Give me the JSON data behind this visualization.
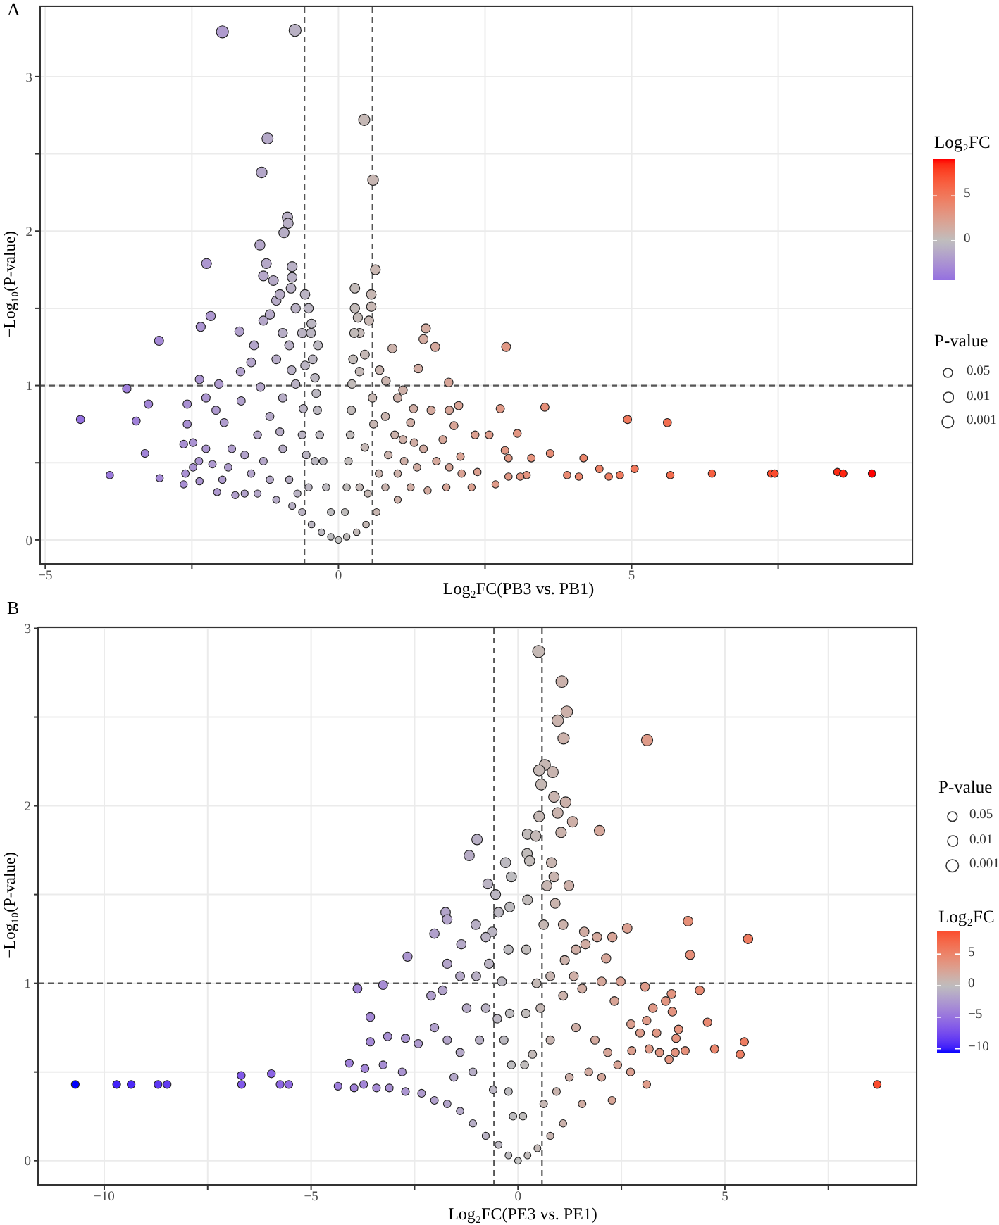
{
  "chart_data": [
    {
      "type": "bubble",
      "title": "A",
      "xlabel": "Log₂FC(PB3 vs. PB1)",
      "ylabel": "−Log₁₀(P-value)",
      "clabel": "Log₂FC",
      "legend_title": "P-value",
      "size_legend": [
        {
          "value": 0.57,
          "label": "0.05"
        },
        {
          "value": 0.72,
          "label": "0.01"
        },
        {
          "value": 0.94,
          "label": "0.001"
        }
      ],
      "marker": "circle",
      "grid": true,
      "xlim": [
        -5.1,
        9.8
      ],
      "xticks": [
        -5,
        {
          "value": -2.5,
          "label": null
        },
        0,
        {
          "value": 2.5,
          "label": null
        },
        5,
        {
          "value": 7.5,
          "label": null
        }
      ],
      "ylim": [
        -0.16,
        3.46
      ],
      "yticks": [
        0,
        {
          "value": 0.5,
          "label": null
        },
        1,
        {
          "value": 1.5,
          "label": null
        },
        2,
        {
          "value": 2.5,
          "label": null
        },
        3
      ],
      "clim": [
        -4.4,
        9.1
      ],
      "cticks": [
        0,
        5
      ],
      "ref_lines": [
        {
          "axis": "x",
          "value": -0.58,
          "color": "#555555",
          "line_style": "dashed"
        },
        {
          "axis": "x",
          "value": 0.58,
          "color": "#555555",
          "line_style": "dashed"
        },
        {
          "axis": "y",
          "value": 1,
          "color": "#555555",
          "line_style": "dashed"
        }
      ],
      "x": [
        -1.98,
        -0.74,
        0.44,
        -1.21,
        -1.31,
        0.59,
        -0.87,
        -0.86,
        -0.93,
        -1.34,
        -2.25,
        -1.23,
        0.63,
        -0.79,
        -1.28,
        -1.11,
        -0.79,
        0.28,
        -0.81,
        -0.57,
        0.56,
        0.56,
        -0.73,
        -2.18,
        0.33,
        -2.35,
        1.49,
        -3.06,
        2.86,
        -1.69,
        0.92,
        1.45,
        1.65,
        1.36,
        0.81,
        1.88,
        -3.61,
        -2.04,
        -3.24,
        1.1,
        -4.4,
        -3.45,
        -3.3,
        -3.9,
        -3.05,
        -2.64,
        -2.61,
        -2.64,
        -2.58,
        -2.37,
        -2.37,
        -2.38,
        -2.07,
        3.52,
        2.76,
        2.05,
        3.05,
        4.93,
        5.61,
        2.33,
        2.57,
        2.84,
        2.9,
        3.29,
        3.61,
        4.18,
        3.9,
        4.1,
        4.45,
        4.61,
        4.8,
        5.05,
        5.66,
        6.37,
        7.38,
        7.44,
        8.51,
        8.61,
        9.1,
        3.21,
        3.1,
        2.9,
        2.68,
        2.37,
        2.08,
        1.84,
        1.52,
        1.97,
        1.78,
        1.58,
        1.28,
        1.29,
        1.12,
        1.01,
        0.8,
        0.65,
        0.47,
        0.31,
        0.14,
        0,
        -0.13,
        -0.29,
        -0.46,
        -0.62,
        -0.79,
        -1.06,
        -1.38,
        -1.6,
        -1.76,
        -1.98,
        -1.88,
        -1.82,
        -1.95,
        -2.09,
        -2.26,
        -1.67,
        -1.49,
        -1.44,
        -1.28,
        -1.17,
        -1.06,
        -1.0,
        -0.95,
        -0.84,
        -0.62,
        -0.46,
        -0.35,
        0.36,
        0.52,
        0.8,
        1.01,
        0.96,
        0.58,
        0.36,
        -0.73,
        -0.95,
        -1.17,
        -1.38,
        -1.6,
        -1.28,
        -0.95,
        -0.62,
        -0.4,
        -0.51,
        -0.84,
        -1.17,
        -1.49,
        0.36,
        0.69,
        1.01,
        1.34,
        1.23,
        1.45,
        1.67,
        1.89,
        2.1,
        2.27,
        1.23,
        1.89,
        -2.58,
        -2.48,
        -2.48,
        -2.26,
        -2.15,
        -1.66,
        -1.33,
        -1.06,
        -0.57,
        -0.4,
        -0.13,
        -0.21,
        -0.26,
        -0.32,
        -0.36,
        -0.38,
        -0.44,
        -0.47,
        -0.51,
        0.11,
        0.14,
        0.17,
        0.2,
        0.22,
        0.23,
        0.25,
        0.27,
        0.28,
        -0.6,
        -0.8,
        -1.0,
        0.45,
        0.6,
        0.45,
        -0.55,
        -0.7,
        0.5,
        0.7,
        1.1,
        0.85
      ],
      "values": [
        3.29,
        3.3,
        2.72,
        2.6,
        2.38,
        2.33,
        2.09,
        2.05,
        1.99,
        1.91,
        1.79,
        1.79,
        1.75,
        1.77,
        1.71,
        1.68,
        1.7,
        1.63,
        1.63,
        1.59,
        1.59,
        1.51,
        1.5,
        1.45,
        1.44,
        1.38,
        1.37,
        1.29,
        1.25,
        1.35,
        1.24,
        1.3,
        1.25,
        1.11,
        1.03,
        1.02,
        0.98,
        1.01,
        0.88,
        0.97,
        0.78,
        0.77,
        0.56,
        0.42,
        0.4,
        0.36,
        0.43,
        0.62,
        0.75,
        1.04,
        0.38,
        0.51,
        0.31,
        0.86,
        0.85,
        0.87,
        0.69,
        0.78,
        0.76,
        0.68,
        0.68,
        0.58,
        0.53,
        0.53,
        0.56,
        0.53,
        0.42,
        0.41,
        0.46,
        0.41,
        0.42,
        0.46,
        0.42,
        0.43,
        0.43,
        0.43,
        0.44,
        0.43,
        0.43,
        0.42,
        0.41,
        0.41,
        0.36,
        0.44,
        0.54,
        0.34,
        0.32,
        0.74,
        0.65,
        0.84,
        0.85,
        0.63,
        0.51,
        0.26,
        0.34,
        0.18,
        0.1,
        0.05,
        0.02,
        0,
        0.02,
        0.05,
        0.1,
        0.18,
        0.22,
        0.26,
        0.3,
        0.3,
        0.29,
        0.39,
        0.47,
        0.59,
        0.76,
        0.84,
        0.92,
        1.09,
        1.15,
        1.26,
        1.42,
        1.46,
        1.55,
        1.59,
        1.34,
        1.26,
        1.34,
        1.4,
        1.26,
        1.34,
        1.42,
        0.8,
        0.92,
        0.68,
        0.92,
        1.09,
        1.01,
        0.92,
        0.8,
        0.68,
        0.55,
        0.51,
        0.59,
        0.68,
        0.51,
        0.34,
        0.39,
        0.39,
        0.43,
        0.34,
        0.43,
        0.43,
        0.47,
        0.34,
        0.59,
        0.51,
        0.47,
        0.43,
        0.34,
        0.76,
        0.84,
        0.88,
        0.63,
        0.47,
        0.59,
        0.49,
        0.9,
        0.99,
        1.17,
        1.13,
        1.05,
        0.18,
        0.34,
        0.51,
        0.68,
        0.84,
        0.95,
        1.17,
        1.34,
        1.5,
        0.18,
        0.34,
        0.51,
        0.68,
        0.84,
        1.01,
        1.17,
        1.34,
        1.5,
        0.85,
        1.1,
        0.7,
        0.6,
        0.75,
        1.2,
        0.55,
        0.3,
        0.3,
        1.1,
        0.65,
        0.55
      ],
      "sizes": [
        1.0,
        1.0,
        0.87,
        0.85,
        0.8,
        0.79,
        0.74,
        0.73,
        0.72,
        0.7,
        0.67,
        0.67,
        0.66,
        0.67,
        0.66,
        0.65,
        0.65,
        0.64,
        0.64,
        0.63,
        0.63,
        0.61,
        0.61,
        0.6,
        0.6,
        0.59,
        0.58,
        0.57,
        0.56,
        0.58,
        0.55,
        0.57,
        0.56,
        0.53,
        0.51,
        0.51,
        0.5,
        0.5,
        0.48,
        0.5,
        0.46,
        0.45,
        0.41,
        0.38,
        0.37,
        0.36,
        0.38,
        0.42,
        0.45,
        0.51,
        0.37,
        0.4,
        0.35,
        0.47,
        0.47,
        0.47,
        0.44,
        0.46,
        0.45,
        0.43,
        0.43,
        0.41,
        0.4,
        0.4,
        0.41,
        0.4,
        0.38,
        0.38,
        0.39,
        0.38,
        0.38,
        0.39,
        0.38,
        0.38,
        0.38,
        0.38,
        0.38,
        0.38,
        0.38,
        0.38,
        0.38,
        0.38,
        0.36,
        0.38,
        0.4,
        0.36,
        0.36,
        0.45,
        0.43,
        0.47,
        0.47,
        0.42,
        0.4,
        0.34,
        0.36,
        0.33,
        0.31,
        0.3,
        0.29,
        0.29,
        0.29,
        0.3,
        0.31,
        0.33,
        0.33,
        0.34,
        0.35,
        0.35,
        0.35,
        0.37,
        0.39,
        0.41,
        0.45,
        0.47,
        0.49,
        0.52,
        0.54,
        0.56,
        0.59,
        0.6,
        0.62,
        0.63,
        0.58,
        0.56,
        0.58,
        0.59,
        0.56,
        0.58,
        0.59,
        0.46,
        0.49,
        0.43,
        0.49,
        0.52,
        0.5,
        0.49,
        0.46,
        0.43,
        0.41,
        0.4,
        0.41,
        0.43,
        0.4,
        0.36,
        0.37,
        0.37,
        0.38,
        0.36,
        0.38,
        0.38,
        0.39,
        0.36,
        0.41,
        0.4,
        0.39,
        0.38,
        0.36,
        0.45,
        0.47,
        0.48,
        0.42,
        0.39,
        0.41,
        0.39,
        0.48,
        0.5,
        0.54,
        0.53,
        0.51,
        0.33,
        0.36,
        0.4,
        0.43,
        0.47,
        0.49,
        0.54,
        0.58,
        0.61,
        0.33,
        0.36,
        0.4,
        0.43,
        0.47,
        0.5,
        0.54,
        0.58,
        0.61,
        0.47,
        0.52,
        0.44,
        0.42,
        0.45,
        0.55,
        0.41,
        0.35,
        0.35,
        0.52,
        0.43,
        0.41
      ],
      "cvalues": [
        -1.98,
        -0.74,
        0.44,
        -1.21,
        -1.31,
        0.59,
        -0.87,
        -0.86,
        -0.93,
        -1.34,
        -2.25,
        -1.23,
        0.63,
        -0.79,
        -1.28,
        -1.11,
        -0.79,
        0.28,
        -0.81,
        -0.57,
        0.56,
        0.56,
        -0.73,
        -2.18,
        0.33,
        -2.35,
        1.49,
        -3.06,
        2.86,
        -1.69,
        0.92,
        1.45,
        1.65,
        1.36,
        0.81,
        1.88,
        -3.61,
        -2.04,
        -3.24,
        1.1,
        -4.4,
        -3.45,
        -3.3,
        -3.9,
        -3.05,
        -2.64,
        -2.61,
        -2.64,
        -2.58,
        -2.37,
        -2.37,
        -2.38,
        -2.07,
        3.52,
        2.76,
        2.05,
        3.05,
        4.93,
        5.61,
        2.33,
        2.57,
        2.84,
        2.9,
        3.29,
        3.61,
        4.18,
        3.9,
        4.1,
        4.45,
        4.61,
        4.8,
        5.05,
        5.66,
        6.37,
        7.38,
        7.44,
        8.51,
        8.61,
        9.1,
        3.21,
        3.1,
        2.9,
        2.68,
        2.37,
        2.08,
        1.84,
        1.52,
        1.97,
        1.78,
        1.58,
        1.28,
        1.29,
        1.12,
        1.01,
        0.8,
        0.65,
        0.47,
        0.31,
        0.14,
        0,
        -0.13,
        -0.29,
        -0.46,
        -0.62,
        -0.79,
        -1.06,
        -1.38,
        -1.6,
        -1.76,
        -1.98,
        -1.88,
        -1.82,
        -1.95,
        -2.09,
        -2.26,
        -1.67,
        -1.49,
        -1.44,
        -1.28,
        -1.17,
        -1.06,
        -1.0,
        -0.95,
        -0.84,
        -0.62,
        -0.46,
        -0.35,
        0.36,
        0.52,
        0.8,
        1.01,
        0.96,
        0.58,
        0.36,
        -0.73,
        -0.95,
        -1.17,
        -1.38,
        -1.6,
        -1.28,
        -0.95,
        -0.62,
        -0.4,
        -0.51,
        -0.84,
        -1.17,
        -1.49,
        0.36,
        0.69,
        1.01,
        1.34,
        1.23,
        1.45,
        1.67,
        1.89,
        2.1,
        2.27,
        1.23,
        1.89,
        -2.58,
        -2.48,
        -2.48,
        -2.26,
        -2.15,
        -1.66,
        -1.33,
        -1.06,
        -0.57,
        -0.4,
        -0.13,
        -0.21,
        -0.26,
        -0.32,
        -0.36,
        -0.38,
        -0.44,
        -0.47,
        -0.51,
        0.11,
        0.14,
        0.17,
        0.2,
        0.22,
        0.23,
        0.25,
        0.27,
        0.28,
        -0.6,
        -0.8,
        -1.0,
        0.45,
        0.6,
        0.45,
        -0.55,
        -0.7,
        0.5,
        0.7,
        1.1,
        0.85
      ]
    },
    {
      "type": "bubble",
      "title": "B",
      "xlabel": "Log₂FC(PE3 vs. PE1)",
      "ylabel": "−Log₁₀(P-value)",
      "clabel": "Log₂FC",
      "legend_title": "P-value",
      "size_legend": [
        {
          "value": 0.63,
          "label": "0.05"
        },
        {
          "value": 0.79,
          "label": "0.01"
        },
        {
          "value": 1.03,
          "label": "0.001"
        }
      ],
      "marker": "circle",
      "grid": true,
      "xlim": [
        -11.6,
        9.65
      ],
      "xticks": [
        -10,
        {
          "value": -7.5,
          "label": null
        },
        -5,
        {
          "value": -2.5,
          "label": null
        },
        0,
        {
          "value": 2.5,
          "label": null
        },
        5,
        {
          "value": 7.5,
          "label": null
        }
      ],
      "ylim": [
        -0.14,
        3.01
      ],
      "yticks": [
        0,
        {
          "value": 0.5,
          "label": null
        },
        1,
        {
          "value": 1.5,
          "label": null
        },
        2,
        {
          "value": 2.5,
          "label": null
        },
        3
      ],
      "clim": [
        -10.7,
        8.7
      ],
      "cticks": [
        -10,
        -5,
        0,
        5
      ],
      "ref_lines": [
        {
          "axis": "x",
          "value": -0.58,
          "color": "#555555",
          "line_style": "dashed"
        },
        {
          "axis": "x",
          "value": 0.58,
          "color": "#555555",
          "line_style": "dashed"
        },
        {
          "axis": "y",
          "value": 1,
          "color": "#555555",
          "line_style": "dashed"
        }
      ],
      "x": [
        0.5,
        1.06,
        1.18,
        0.96,
        1.1,
        3.12,
        0.65,
        0.84,
        0.51,
        0.56,
        0.87,
        1.15,
        0.96,
        0.51,
        1.32,
        1.04,
        1.97,
        0.23,
        0.43,
        -0.99,
        -1.18,
        -0.3,
        0.22,
        0.81,
        -0.16,
        0.87,
        1.23,
        -0.73,
        -0.54,
        -0.2,
        -1.75,
        -1.71,
        -2.02,
        -2.67,
        -1.37,
        -1.02,
        -0.62,
        4.11,
        5.56,
        4.16,
        2.64,
        1.6,
        2.28,
        1.91,
        2.13,
        1.63,
        1.13,
        1.35,
        3.07,
        3.71,
        4.39,
        -3.88,
        -3.26,
        -3.57,
        -3.57,
        -3.15,
        -2.72,
        -4.08,
        -4.35,
        -10.7,
        -9.7,
        -9.35,
        -8.7,
        -8.48,
        -6.69,
        -6.68,
        -5.96,
        -5.75,
        -5.54,
        8.68,
        4.58,
        5.47,
        5.37,
        4.75,
        4.04,
        3.8,
        3.65,
        3.42,
        3.17,
        3.11,
        3.35,
        3.88,
        3.82,
        3.73,
        3.26,
        2.73,
        2.75,
        2.72,
        2.27,
        2.02,
        1.55,
        1.09,
        0.78,
        0.47,
        0.23,
        0,
        -0.23,
        -0.47,
        -0.78,
        -1.09,
        -1.4,
        -1.71,
        -2.02,
        -2.33,
        -2.72,
        -3.11,
        -3.42,
        -3.73,
        -3.96,
        -3.7,
        -3.26,
        -2.8,
        -2.41,
        -2.02,
        -2.1,
        -1.82,
        -1.71,
        -1.4,
        -1.24,
        -1.71,
        -1.4,
        -1.09,
        -1.55,
        -0.93,
        -0.78,
        -1.01,
        -0.7,
        -0.78,
        -0.47,
        -0.39,
        -0.34,
        -0.23,
        -0.12,
        -0.16,
        -0.2,
        -0.23,
        0.12,
        0.16,
        0.19,
        0.2,
        0.23,
        0.28,
        0.62,
        1.09,
        0.78,
        1.09,
        1.55,
        1.4,
        1.86,
        2.33,
        2.17,
        1.71,
        1.24,
        0.93,
        0.62,
        0.78,
        0.54,
        1.4,
        2.41,
        2.95,
        3.57,
        3.11,
        2.48,
        2.02,
        0.45,
        0.35,
        -0.5,
        -0.6,
        0.9,
        0.7
      ],
      "values": [
        2.87,
        2.7,
        2.53,
        2.48,
        2.38,
        2.37,
        2.23,
        2.19,
        2.2,
        2.12,
        2.05,
        2.02,
        1.96,
        1.94,
        1.91,
        1.85,
        1.86,
        1.84,
        1.83,
        1.81,
        1.72,
        1.68,
        1.73,
        1.68,
        1.6,
        1.6,
        1.55,
        1.56,
        1.5,
        1.43,
        1.4,
        1.36,
        1.28,
        1.15,
        1.22,
        1.33,
        1.29,
        1.35,
        1.25,
        1.16,
        1.31,
        1.29,
        1.26,
        1.26,
        1.14,
        1.22,
        1.13,
        1.04,
        0.98,
        0.94,
        0.96,
        0.97,
        0.99,
        0.81,
        0.67,
        0.7,
        0.69,
        0.55,
        0.42,
        0.43,
        0.43,
        0.43,
        0.43,
        0.43,
        0.48,
        0.43,
        0.49,
        0.43,
        0.43,
        0.43,
        0.78,
        0.67,
        0.6,
        0.63,
        0.62,
        0.61,
        0.57,
        0.61,
        0.63,
        0.43,
        0.72,
        0.74,
        0.69,
        0.84,
        0.86,
        0.77,
        0.62,
        0.5,
        0.34,
        0.47,
        0.32,
        0.21,
        0.14,
        0.07,
        0.03,
        0,
        0.03,
        0.09,
        0.14,
        0.21,
        0.28,
        0.32,
        0.34,
        0.38,
        0.39,
        0.41,
        0.41,
        0.43,
        0.41,
        0.52,
        0.54,
        0.5,
        0.66,
        0.75,
        0.93,
        0.96,
        1.11,
        1.04,
        0.86,
        0.68,
        0.61,
        0.5,
        0.47,
        0.68,
        0.86,
        1.04,
        1.11,
        1.26,
        1.4,
        1.01,
        0.68,
        0.39,
        0.25,
        0.54,
        0.83,
        1.19,
        0.25,
        0.54,
        0.83,
        1.19,
        1.47,
        1.69,
        1.33,
        1.33,
        1.04,
        0.93,
        0.97,
        0.75,
        0.68,
        0.9,
        0.61,
        0.5,
        0.47,
        0.39,
        0.32,
        0.68,
        0.86,
        1.19,
        0.54,
        0.72,
        0.9,
        0.79,
        1.01,
        1.01,
        1.0,
        0.6,
        0.8,
        0.4,
        1.45,
        1.55
      ],
      "sizes": [
        1.0,
        0.96,
        0.92,
        0.91,
        0.88,
        0.88,
        0.85,
        0.84,
        0.84,
        0.82,
        0.8,
        0.8,
        0.78,
        0.78,
        0.77,
        0.76,
        0.76,
        0.75,
        0.75,
        0.75,
        0.73,
        0.72,
        0.73,
        0.72,
        0.7,
        0.7,
        0.69,
        0.69,
        0.67,
        0.66,
        0.65,
        0.64,
        0.62,
        0.59,
        0.61,
        0.63,
        0.62,
        0.64,
        0.61,
        0.59,
        0.63,
        0.62,
        0.62,
        0.62,
        0.59,
        0.61,
        0.58,
        0.56,
        0.55,
        0.54,
        0.54,
        0.55,
        0.55,
        0.51,
        0.48,
        0.48,
        0.48,
        0.45,
        0.42,
        0.42,
        0.42,
        0.42,
        0.42,
        0.42,
        0.43,
        0.42,
        0.43,
        0.42,
        0.42,
        0.42,
        0.5,
        0.48,
        0.46,
        0.47,
        0.46,
        0.46,
        0.45,
        0.46,
        0.47,
        0.42,
        0.49,
        0.49,
        0.48,
        0.52,
        0.52,
        0.5,
        0.46,
        0.43,
        0.4,
        0.43,
        0.39,
        0.37,
        0.35,
        0.33,
        0.32,
        0.32,
        0.32,
        0.34,
        0.35,
        0.37,
        0.38,
        0.39,
        0.4,
        0.41,
        0.41,
        0.41,
        0.41,
        0.42,
        0.41,
        0.44,
        0.44,
        0.43,
        0.47,
        0.49,
        0.54,
        0.54,
        0.58,
        0.56,
        0.52,
        0.48,
        0.46,
        0.43,
        0.43,
        0.48,
        0.52,
        0.56,
        0.58,
        0.62,
        0.65,
        0.56,
        0.48,
        0.41,
        0.38,
        0.44,
        0.51,
        0.6,
        0.38,
        0.44,
        0.51,
        0.6,
        0.67,
        0.72,
        0.63,
        0.63,
        0.56,
        0.54,
        0.55,
        0.49,
        0.48,
        0.53,
        0.46,
        0.43,
        0.43,
        0.41,
        0.39,
        0.48,
        0.52,
        0.6,
        0.44,
        0.49,
        0.53,
        0.5,
        0.56,
        0.56,
        0.55,
        0.46,
        0.51,
        0.41,
        0.66,
        0.69
      ],
      "cvalues": [
        0.5,
        1.06,
        1.18,
        0.96,
        1.1,
        3.12,
        0.65,
        0.84,
        0.51,
        0.56,
        0.87,
        1.15,
        0.96,
        0.51,
        1.32,
        1.04,
        1.97,
        0.23,
        0.43,
        -0.99,
        -1.18,
        -0.3,
        0.22,
        0.81,
        -0.16,
        0.87,
        1.23,
        -0.73,
        -0.54,
        -0.2,
        -1.75,
        -1.71,
        -2.02,
        -2.67,
        -1.37,
        -1.02,
        -0.62,
        4.11,
        5.56,
        4.16,
        2.64,
        1.6,
        2.28,
        1.91,
        2.13,
        1.63,
        1.13,
        1.35,
        3.07,
        3.71,
        4.39,
        -3.88,
        -3.26,
        -3.57,
        -3.57,
        -3.15,
        -2.72,
        -4.08,
        -4.35,
        -10.7,
        -9.7,
        -9.35,
        -8.7,
        -8.48,
        -6.69,
        -6.68,
        -5.96,
        -5.75,
        -5.54,
        8.68,
        4.58,
        5.47,
        5.37,
        4.75,
        4.04,
        3.8,
        3.65,
        3.42,
        3.17,
        3.11,
        3.35,
        3.88,
        3.82,
        3.73,
        3.26,
        2.73,
        2.75,
        2.72,
        2.27,
        2.02,
        1.55,
        1.09,
        0.78,
        0.47,
        0.23,
        0,
        -0.23,
        -0.47,
        -0.78,
        -1.09,
        -1.4,
        -1.71,
        -2.02,
        -2.33,
        -2.72,
        -3.11,
        -3.42,
        -3.73,
        -3.96,
        -3.7,
        -3.26,
        -2.8,
        -2.41,
        -2.02,
        -2.1,
        -1.82,
        -1.71,
        -1.4,
        -1.24,
        -1.71,
        -1.4,
        -1.09,
        -1.55,
        -0.93,
        -0.78,
        -1.01,
        -0.7,
        -0.78,
        -0.47,
        -0.39,
        -0.34,
        -0.23,
        -0.12,
        -0.16,
        -0.2,
        -0.23,
        0.12,
        0.16,
        0.19,
        0.2,
        0.23,
        0.28,
        0.62,
        1.09,
        0.78,
        1.09,
        1.55,
        1.4,
        1.86,
        2.33,
        2.17,
        1.71,
        1.24,
        0.93,
        0.62,
        0.78,
        0.54,
        1.4,
        2.41,
        2.95,
        3.57,
        3.11,
        2.48,
        2.02,
        0.45,
        0.35,
        -0.5,
        -0.6,
        0.9,
        0.7
      ]
    }
  ]
}
